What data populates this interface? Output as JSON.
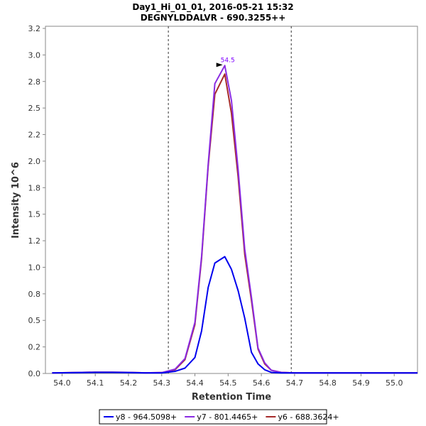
{
  "chart_data": {
    "type": "line",
    "title": "Day1_Hi_01_01, 2016-05-21 15:32",
    "subtitle": "DEGNYLDDALVR - 690.3255++",
    "xlabel": "Retention Time",
    "ylabel": "Intensity 10^6",
    "xlim": [
      53.95,
      55.07
    ],
    "ylim": [
      0.0,
      3.27
    ],
    "x_ticks": [
      "54.0",
      "54.1",
      "54.2",
      "54.3",
      "54.4",
      "54.5",
      "54.6",
      "54.7",
      "54.8",
      "54.9",
      "55.0"
    ],
    "y_ticks": [
      "0.0",
      "0.2",
      "0.5",
      "0.8",
      "1.0",
      "1.2",
      "1.5",
      "1.8",
      "2.0",
      "2.2",
      "2.5",
      "2.8",
      "3.0",
      "3.2"
    ],
    "grid": false,
    "legend_position": "bottom",
    "integration_boundaries": [
      54.32,
      54.69
    ],
    "annotation": {
      "text": "54.5",
      "x": 54.49,
      "y": 2.9,
      "color": "#7f00ff"
    },
    "series": [
      {
        "name": "y8 - 964.5098+",
        "color": "#0000ee",
        "x": [
          53.97,
          54.06,
          54.1,
          54.15,
          54.2,
          54.25,
          54.3,
          54.34,
          54.37,
          54.4,
          54.42,
          54.44,
          54.46,
          54.49,
          54.51,
          54.53,
          54.55,
          54.57,
          54.59,
          54.61,
          54.63,
          54.66,
          54.7,
          55.07
        ],
        "y": [
          0.005,
          0.008,
          0.01,
          0.01,
          0.008,
          0.005,
          0.005,
          0.02,
          0.05,
          0.15,
          0.4,
          0.81,
          1.04,
          1.1,
          0.98,
          0.78,
          0.52,
          0.2,
          0.09,
          0.035,
          0.01,
          0.005,
          0.005,
          0.005
        ]
      },
      {
        "name": "y7 - 801.4465+",
        "color": "#8a2be2",
        "x": [
          53.97,
          54.06,
          54.1,
          54.15,
          54.2,
          54.25,
          54.3,
          54.34,
          54.37,
          54.4,
          54.42,
          54.44,
          54.46,
          54.49,
          54.51,
          54.53,
          54.55,
          54.57,
          54.59,
          54.61,
          54.63,
          54.66,
          54.7,
          55.07
        ],
        "y": [
          0.005,
          0.01,
          0.012,
          0.012,
          0.01,
          0.006,
          0.008,
          0.04,
          0.14,
          0.48,
          1.1,
          1.97,
          2.73,
          2.9,
          2.57,
          1.92,
          1.17,
          0.72,
          0.24,
          0.1,
          0.03,
          0.01,
          0.005,
          0.005
        ]
      },
      {
        "name": "y6 - 688.3624+",
        "color": "#a52a2a",
        "x": [
          53.97,
          54.06,
          54.1,
          54.15,
          54.2,
          54.25,
          54.3,
          54.34,
          54.37,
          54.4,
          54.42,
          54.44,
          54.46,
          54.49,
          54.51,
          54.53,
          54.55,
          54.57,
          54.59,
          54.61,
          54.63,
          54.66,
          54.7,
          55.07
        ],
        "y": [
          0.005,
          0.01,
          0.012,
          0.012,
          0.01,
          0.006,
          0.008,
          0.035,
          0.13,
          0.46,
          1.08,
          1.95,
          2.63,
          2.82,
          2.45,
          1.85,
          1.12,
          0.69,
          0.23,
          0.09,
          0.03,
          0.01,
          0.005,
          0.005
        ]
      }
    ]
  }
}
